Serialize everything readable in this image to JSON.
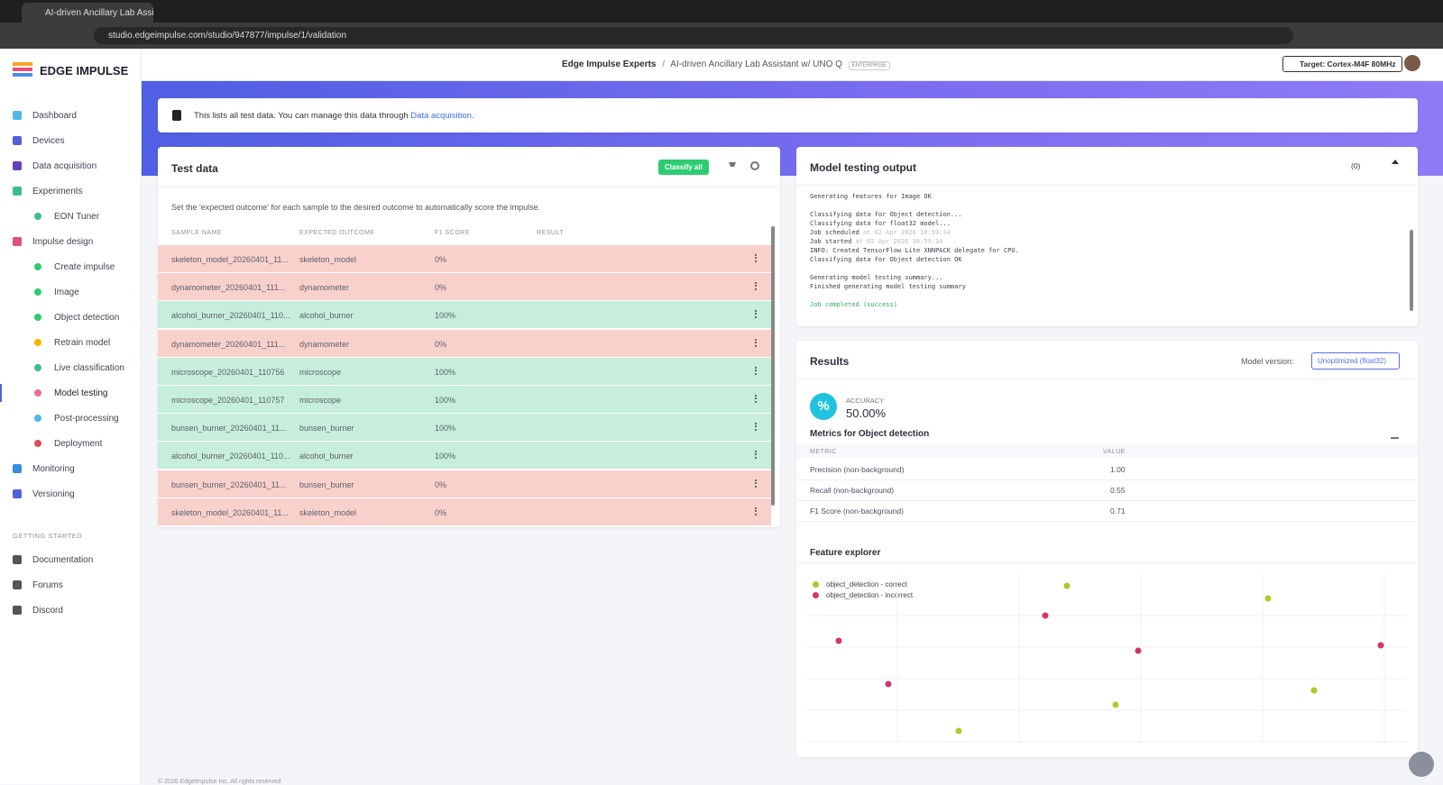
{
  "browser": {
    "tab_title": "AI-driven Ancillary Lab Assistan",
    "url": "studio.edgeimpulse.com/studio/947877/impulse/1/validation"
  },
  "sidebar": {
    "brand": "EDGE IMPULSE",
    "items": [
      {
        "label": "Dashboard",
        "icon_color": "#4fb8e8"
      },
      {
        "label": "Devices",
        "icon_color": "#5560d8"
      },
      {
        "label": "Data acquisition",
        "icon_color": "#6a3fb5"
      },
      {
        "label": "Experiments",
        "icon_color": "#3bbf8a"
      },
      {
        "label": "EON Tuner",
        "sub": true,
        "icon_color": "#3bbf8a"
      },
      {
        "label": "Impulse design",
        "icon_color": "#e0507a"
      },
      {
        "label": "Create impulse",
        "sub": true,
        "icon_color": "#2ecc71"
      },
      {
        "label": "Image",
        "sub": true,
        "icon_color": "#2ecc71"
      },
      {
        "label": "Object detection",
        "sub": true,
        "icon_color": "#2ecc71"
      },
      {
        "label": "Retrain model",
        "sub": true,
        "icon_color": "#f5b400"
      },
      {
        "label": "Live classification",
        "sub": true,
        "icon_color": "#3bbf8a"
      },
      {
        "label": "Model testing",
        "sub": true,
        "icon_color": "#e8708a",
        "active": true
      },
      {
        "label": "Post-processing",
        "sub": true,
        "icon_color": "#4fb8e8"
      },
      {
        "label": "Deployment",
        "sub": true,
        "icon_color": "#e04a5a"
      },
      {
        "label": "Monitoring",
        "icon_color": "#3a8ee0"
      },
      {
        "label": "Versioning",
        "icon_color": "#5560d8"
      }
    ],
    "section": "GETTING STARTED",
    "help": [
      "Documentation",
      "Forums",
      "Discord"
    ]
  },
  "header": {
    "org": "Edge Impulse Experts",
    "separator": "/",
    "project": "AI-driven Ancillary Lab Assistant w/ UNO Q",
    "badge": "ENTERPRISE",
    "target": "Target: Cortex-M4F 80MHz"
  },
  "banner": {
    "text": "This lists all test data. You can manage this data through",
    "link": "Data acquisition",
    "end": "."
  },
  "test_data": {
    "title": "Test data",
    "button": "Classify all",
    "description": "Set the 'expected outcome' for each sample to the desired outcome to automatically score the impulse.",
    "columns": [
      "SAMPLE NAME",
      "EXPECTED OUTCOME",
      "F1 SCORE",
      "RESULT"
    ],
    "rows": [
      {
        "name": "skeleton_model_20260401_11...",
        "expected": "skeleton_model",
        "f1": "0%",
        "color": "#f9d1cb"
      },
      {
        "name": "dynamometer_20260401_111...",
        "expected": "dynamometer",
        "f1": "0%",
        "color": "#f9d1cb"
      },
      {
        "name": "alcohol_burner_20260401_110...",
        "expected": "alcohol_burner",
        "f1": "100%",
        "color": "#c6eedb"
      },
      {
        "name": "dynamometer_20260401_111...",
        "expected": "dynamometer",
        "f1": "0%",
        "color": "#f9d1cb"
      },
      {
        "name": "microscope_20260401_110756",
        "expected": "microscope",
        "f1": "100%",
        "color": "#c6eedb"
      },
      {
        "name": "microscope_20260401_110757",
        "expected": "microscope",
        "f1": "100%",
        "color": "#c6eedb"
      },
      {
        "name": "bunsen_burner_20260401_11...",
        "expected": "bunsen_burner",
        "f1": "100%",
        "color": "#c6eedb"
      },
      {
        "name": "alcohol_burner_20260401_110...",
        "expected": "alcohol_burner",
        "f1": "100%",
        "color": "#c6eedb"
      },
      {
        "name": "bunsen_burner_20260401_11...",
        "expected": "bunsen_burner",
        "f1": "0%",
        "color": "#f9d1cb"
      },
      {
        "name": "skeleton_model_20260401_11...",
        "expected": "skeleton_model",
        "f1": "0%",
        "color": "#f9d1cb"
      }
    ]
  },
  "output": {
    "title": "Model testing output",
    "notifications": "(0)",
    "log": [
      [
        {
          "text": "Generating features for Image OK"
        }
      ],
      [
        {
          "text": "Classifying data for Object detection..."
        },
        {
          "text": "Classifying data for float32 model..."
        },
        {
          "text": "Job scheduled",
          "time": "at 02 Apr 2026 10:59:34"
        },
        {
          "text": "Job started",
          "time": "at 02 Apr 2026 10:59:34"
        },
        {
          "text": "INFO: Created TensorFlow Lite XNNPACK delegate for CPU."
        },
        {
          "text": "Classifying data for Object detection OK"
        }
      ],
      [
        {
          "text": "Generating model testing summary..."
        },
        {
          "text": "Finished generating model testing summary"
        }
      ],
      [
        {
          "text": "Job completed (success)",
          "color": "#2eaa5c"
        }
      ]
    ]
  },
  "results": {
    "title": "Results",
    "version_label": "Model version:",
    "version": "Unoptimized (float32)",
    "accuracy_label": "ACCURACY",
    "accuracy": "50.00%",
    "metrics_title": "Metrics for Object detection",
    "metric_columns": [
      "METRIC",
      "VALUE"
    ],
    "metrics": [
      [
        "Precision (non-background)",
        "1.00"
      ],
      [
        "Recall (non-background)",
        "0.55"
      ],
      [
        "F1 Score (non-background)",
        "0.71"
      ]
    ],
    "explorer_title": "Feature explorer",
    "legend": [
      {
        "name": "object_detection - correct",
        "color": "#a8cc2c"
      },
      {
        "name": "object_detection - incorrect",
        "color": "#d6336c"
      }
    ]
  },
  "footer": "© 2026 EdgeImpulse Inc. All rights reserved"
}
